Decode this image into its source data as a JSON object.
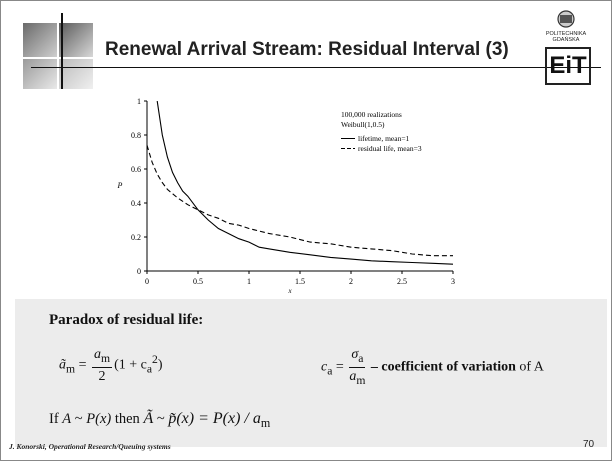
{
  "slide": {
    "title": "Renewal Arrival Stream: Residual Interval (3)",
    "logo_text": "POLITECHNIKA GDAŃSKA",
    "logo_mark": "EiT",
    "footer": "J. Konorski, Operational Research/Queuing systems",
    "page_number": "70",
    "section_heading": "Paradox of residual life:",
    "eq1": {
      "lhs": "ã",
      "sub": "m",
      "eq": " = ",
      "num": "a",
      "num_sub": "m",
      "den": "2",
      "rest": "(1 + c",
      "rest_sub": "a",
      "rest_sup": "2",
      "close": ")"
    },
    "eq2": {
      "lhs": "c",
      "lhs_sub": "a",
      "eq": " = ",
      "num": "σ",
      "num_sub": "a",
      "den": "a",
      "den_sub": "m",
      "bold_text": " – coefficient of variation",
      "tail": " of A"
    },
    "eq3": {
      "prefix": "If ",
      "a": "A",
      "sim1": " ~ ",
      "px": "P(x)",
      "then": " then ",
      "atilde": "Ã",
      "sim2": " ~ ",
      "ptilde": "p̃(x) = P(x) / a",
      "sub": "m"
    }
  },
  "chart_data": {
    "type": "line",
    "xlabel": "x",
    "ylabel": "P",
    "xlim": [
      0,
      3
    ],
    "ylim": [
      0,
      1
    ],
    "xticks": [
      "0",
      "0.5",
      "1",
      "1.5",
      "2",
      "2.5",
      "3"
    ],
    "yticks": [
      "0",
      "0.2",
      "0.4",
      "0.6",
      "0.8",
      "1"
    ],
    "annotation": [
      "100,000 realizations",
      "Weibull(1,0.5)"
    ],
    "legend_position": "top-right",
    "series": [
      {
        "name": "lifetime, mean=1",
        "style": "solid",
        "x": [
          0.1,
          0.15,
          0.2,
          0.25,
          0.3,
          0.35,
          0.4,
          0.5,
          0.6,
          0.7,
          0.8,
          0.9,
          1.0,
          1.1,
          1.2,
          1.4,
          1.6,
          1.8,
          2.0,
          2.2,
          2.4,
          2.6,
          2.8,
          3.0
        ],
        "y": [
          1.0,
          0.8,
          0.67,
          0.58,
          0.52,
          0.47,
          0.44,
          0.36,
          0.3,
          0.25,
          0.22,
          0.19,
          0.17,
          0.14,
          0.13,
          0.11,
          0.095,
          0.08,
          0.07,
          0.06,
          0.055,
          0.05,
          0.045,
          0.04
        ]
      },
      {
        "name": "residual life, mean=3",
        "style": "dashed",
        "x": [
          0.0,
          0.05,
          0.1,
          0.15,
          0.2,
          0.3,
          0.4,
          0.5,
          0.6,
          0.7,
          0.8,
          0.9,
          1.0,
          1.2,
          1.4,
          1.6,
          1.8,
          2.0,
          2.2,
          2.4,
          2.6,
          2.8,
          3.0
        ],
        "y": [
          0.74,
          0.64,
          0.57,
          0.52,
          0.48,
          0.43,
          0.39,
          0.36,
          0.33,
          0.31,
          0.28,
          0.27,
          0.25,
          0.22,
          0.2,
          0.17,
          0.16,
          0.14,
          0.13,
          0.12,
          0.1,
          0.09,
          0.09
        ]
      }
    ]
  }
}
